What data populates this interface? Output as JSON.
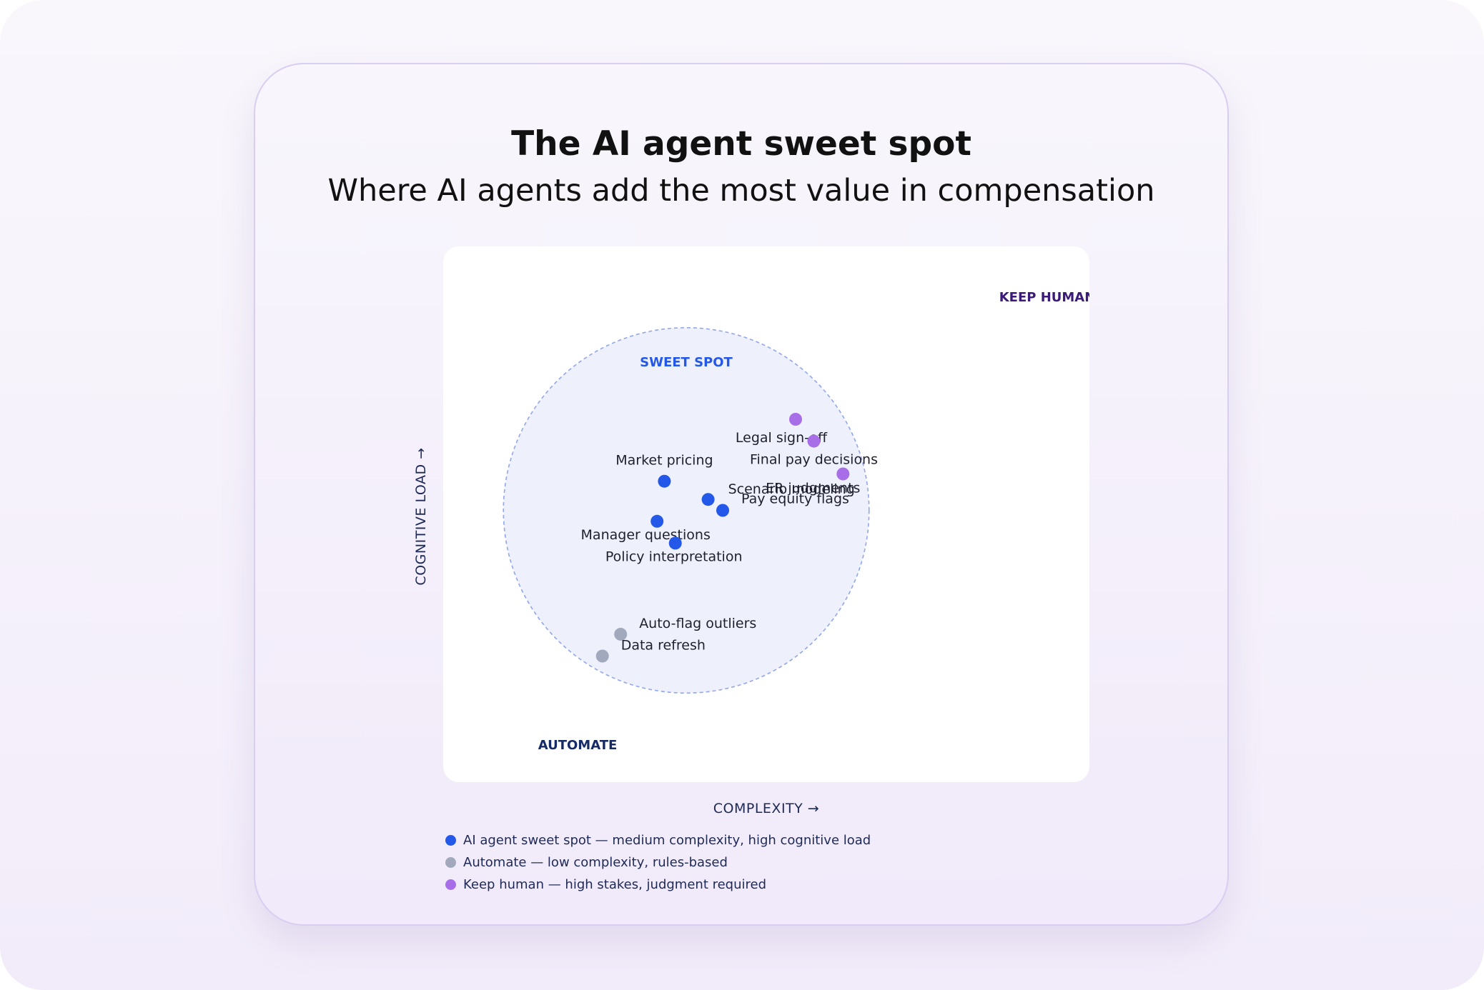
{
  "title": "The AI agent sweet spot",
  "subtitle": "Where AI agents add the most value in compensation",
  "chart_data": {
    "type": "scatter",
    "xlabel": "COMPLEXITY →",
    "ylabel": "COGNITIVE LOAD →",
    "xlim": [
      0,
      100
    ],
    "ylim": [
      0,
      100
    ],
    "grid": false,
    "zones": [
      {
        "name": "SWEET SPOT",
        "shape": "circle",
        "center": [
          40,
          55
        ],
        "radius": 33,
        "color": "#2358e8"
      },
      {
        "name": "KEEP HUMAN",
        "color": "#3b1a7a"
      },
      {
        "name": "AUTOMATE",
        "color": "#162a66"
      }
    ],
    "series": [
      {
        "name": "AI agent sweet spot",
        "color": "#2358e8",
        "points": [
          {
            "label": "Market pricing",
            "x": 34,
            "y": 63
          },
          {
            "label": "Scenario modeling",
            "x": 46,
            "y": 58
          },
          {
            "label": "Pay equity flags",
            "x": 50,
            "y": 55
          },
          {
            "label": "Manager questions",
            "x": 32,
            "y": 52
          },
          {
            "label": "Policy interpretation",
            "x": 37,
            "y": 46
          }
        ]
      },
      {
        "name": "Automate",
        "color": "#a3a9bd",
        "points": [
          {
            "label": "Auto-flag outliers",
            "x": 22,
            "y": 21
          },
          {
            "label": "Data refresh",
            "x": 17,
            "y": 15
          }
        ]
      },
      {
        "name": "Keep human",
        "color": "#a86ee8",
        "points": [
          {
            "label": "Legal sign-off",
            "x": 70,
            "y": 80
          },
          {
            "label": "Final pay decisions",
            "x": 75,
            "y": 74
          },
          {
            "label": "ER judgments",
            "x": 83,
            "y": 65
          }
        ]
      }
    ],
    "legend": {
      "placement": "bottom-left",
      "entries": [
        {
          "text": "AI agent sweet spot — medium complexity, high cognitive load",
          "color": "#2358e8"
        },
        {
          "text": "Automate — low complexity, rules-based",
          "color": "#a3a9bd"
        },
        {
          "text": "Keep human — high stakes, judgment required",
          "color": "#a86ee8"
        }
      ]
    }
  }
}
